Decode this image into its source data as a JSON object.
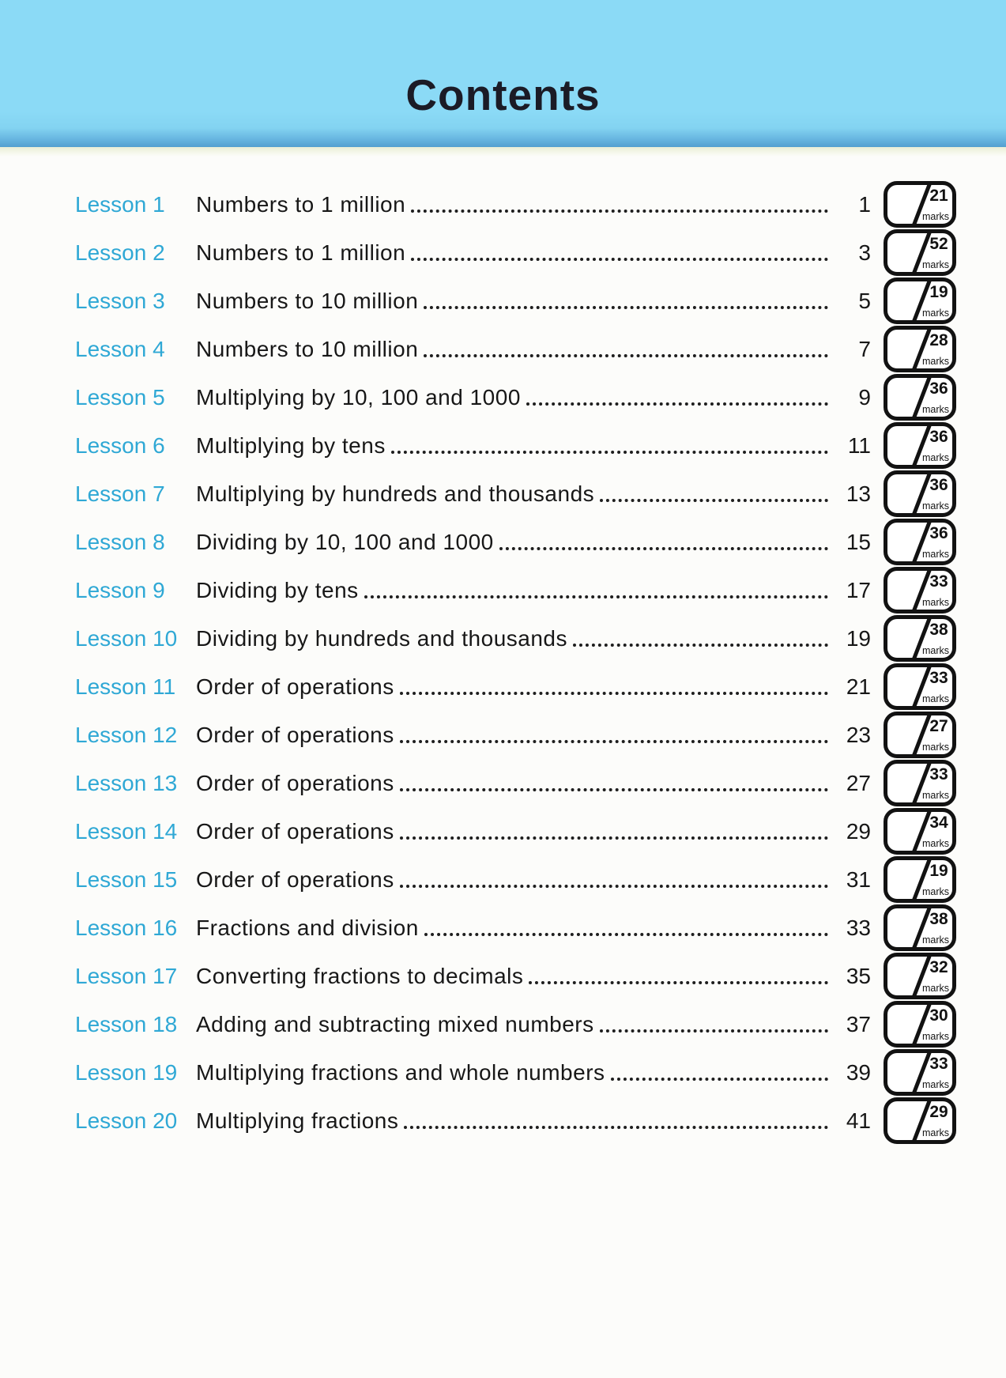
{
  "colors": {
    "header_band": "#8BDAF6",
    "header_band_edge": "#539FD0",
    "divider_cream": "#E9EDD6",
    "accent_cyan": "#2FA8D5",
    "text_dark": "#1B1B26",
    "marks_box_border": "#121212"
  },
  "header": {
    "title": "Contents"
  },
  "contents": {
    "marks_word": "marks",
    "rows": [
      {
        "lesson": "Lesson 1",
        "title": "Numbers to 1 million",
        "page": "1",
        "marks": "21"
      },
      {
        "lesson": "Lesson 2",
        "title": "Numbers to 1 million",
        "page": "3",
        "marks": "52"
      },
      {
        "lesson": "Lesson 3",
        "title": "Numbers to 10 million",
        "page": "5",
        "marks": "19"
      },
      {
        "lesson": "Lesson 4",
        "title": "Numbers to 10 million",
        "page": "7",
        "marks": "28"
      },
      {
        "lesson": "Lesson 5",
        "title": "Multiplying by 10, 100 and 1000",
        "page": "9",
        "marks": "36"
      },
      {
        "lesson": "Lesson 6",
        "title": "Multiplying by tens",
        "page": "11",
        "marks": "36"
      },
      {
        "lesson": "Lesson 7",
        "title": "Multiplying by hundreds and thousands",
        "page": "13",
        "marks": "36"
      },
      {
        "lesson": "Lesson 8",
        "title": "Dividing by 10, 100 and 1000",
        "page": "15",
        "marks": "36"
      },
      {
        "lesson": "Lesson 9",
        "title": "Dividing by tens",
        "page": "17",
        "marks": "33"
      },
      {
        "lesson": "Lesson 10",
        "title": "Dividing by hundreds and thousands",
        "page": "19",
        "marks": "38"
      },
      {
        "lesson": "Lesson 11",
        "title": "Order of operations",
        "page": "21",
        "marks": "33"
      },
      {
        "lesson": "Lesson 12",
        "title": "Order of operations",
        "page": "23",
        "marks": "27"
      },
      {
        "lesson": "Lesson 13",
        "title": "Order of operations",
        "page": "27",
        "marks": "33"
      },
      {
        "lesson": "Lesson 14",
        "title": "Order of operations",
        "page": "29",
        "marks": "34"
      },
      {
        "lesson": "Lesson 15",
        "title": "Order of operations",
        "page": "31",
        "marks": "19"
      },
      {
        "lesson": "Lesson 16",
        "title": "Fractions and division",
        "page": "33",
        "marks": "38"
      },
      {
        "lesson": "Lesson 17",
        "title": "Converting fractions to decimals",
        "page": "35",
        "marks": "32"
      },
      {
        "lesson": "Lesson 18",
        "title": "Adding and subtracting mixed numbers",
        "page": "37",
        "marks": "30"
      },
      {
        "lesson": "Lesson 19",
        "title": "Multiplying fractions and whole numbers",
        "page": "39",
        "marks": "33"
      },
      {
        "lesson": "Lesson 20",
        "title": "Multiplying fractions",
        "page": "41",
        "marks": "29"
      }
    ]
  }
}
